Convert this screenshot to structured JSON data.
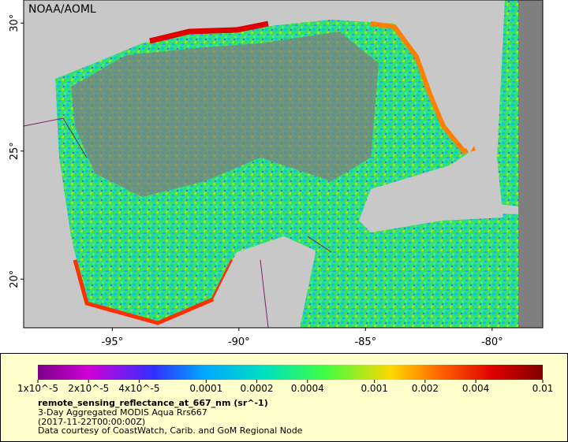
{
  "map": {
    "title": "NOAA/AOML",
    "xlim": [
      -98.5,
      -78
    ],
    "ylim": [
      18.1,
      30.9
    ],
    "xticks": [
      {
        "value": -95,
        "label": "-95°"
      },
      {
        "value": -90,
        "label": "-90°"
      },
      {
        "value": -85,
        "label": "-85°"
      },
      {
        "value": -80,
        "label": "-80°"
      }
    ],
    "yticks": [
      {
        "value": 20,
        "label": "20°"
      },
      {
        "value": 25,
        "label": "25°"
      },
      {
        "value": 30,
        "label": "30°"
      }
    ]
  },
  "colorbar": {
    "lim": [
      1e-05,
      0.01
    ],
    "log": true,
    "ticks": [
      {
        "value": 1e-05,
        "label": "1x10^-5"
      },
      {
        "value": 2e-05,
        "label": "2x10^-5"
      },
      {
        "value": 4e-05,
        "label": "4x10^-5"
      },
      0.0001,
      0.0002,
      0.0004,
      0.001,
      0.002,
      0.004,
      0.01
    ]
  },
  "caption": {
    "variable": "remote_sensing_reflectance_at_667_nm (sr^-1)",
    "description": "3-Day Aggregated MODIS Aqua Rrs667",
    "time": "(2017-11-22T00:00:00Z)",
    "credit": "Data courtesy of CoastWatch, Carib. and GoM Regional Node"
  }
}
